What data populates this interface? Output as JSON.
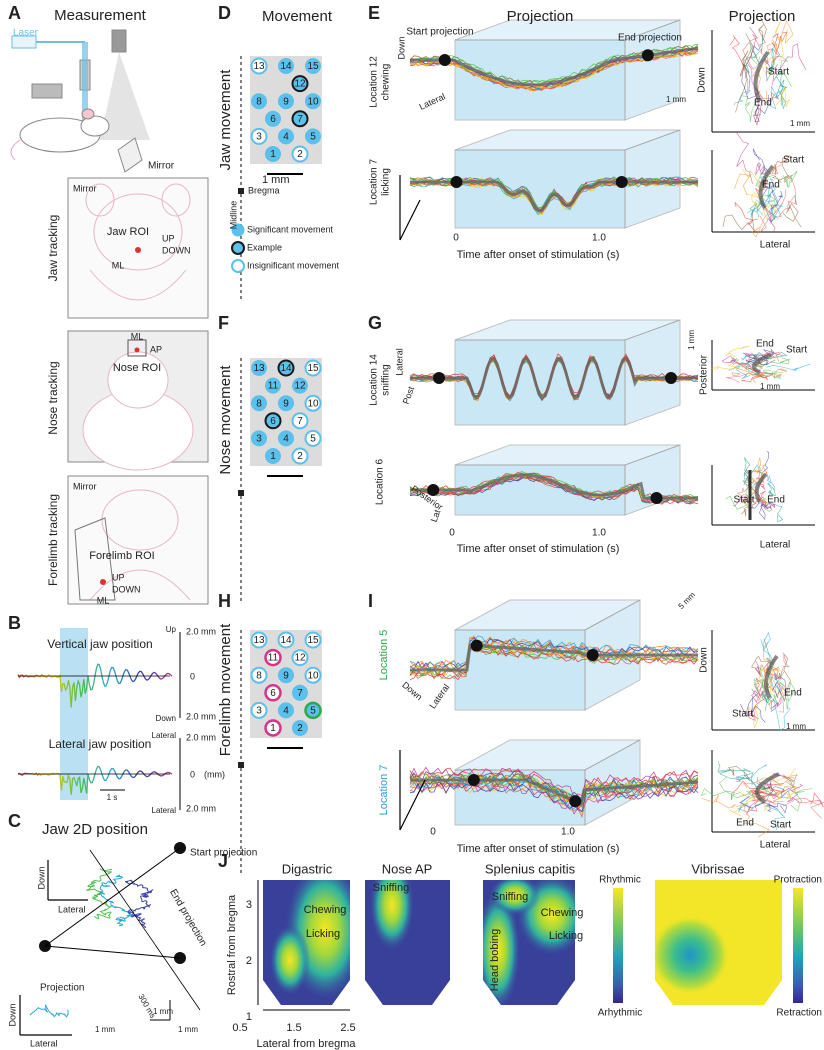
{
  "A": {
    "letter": "A",
    "title": "Measurement",
    "laser": "Laser",
    "mirror": "Mirror",
    "jaw": {
      "label": "Jaw tracking",
      "mirror": "Mirror",
      "roi": "Jaw ROI",
      "up": "UP",
      "down": "DOWN",
      "ml": "ML"
    },
    "nose": {
      "label": "Nose tracking",
      "ml": "ML",
      "ap": "AP",
      "roi": "Nose ROI"
    },
    "forelimb": {
      "label": "Forelimb tracking",
      "mirror": "Mirror",
      "roi": "Forelimb ROI",
      "up": "UP",
      "down": "DOWN",
      "ml": "ML"
    }
  },
  "B": {
    "letter": "B",
    "vertical": {
      "title": "Vertical jaw position",
      "top": "Up",
      "top_value": "2.0 mm",
      "zero": "0",
      "bottom": "Down",
      "bottom_value": "2.0 mm"
    },
    "lateral": {
      "title": "Lateral jaw position",
      "top": "Lateral",
      "top_value": "2.0 mm",
      "unit": "(mm)",
      "zero": "0",
      "time_scale": "1 s",
      "bottom": "Lateral",
      "bottom_value": "2.0 mm"
    }
  },
  "C": {
    "letter": "C",
    "title": "Jaw 2D position",
    "start": "Start projection",
    "end": "End projection",
    "down": "Down",
    "lateral": "Lateral",
    "projection": "Projection",
    "time": "300 ms",
    "scale_v": "1 mm",
    "scale_h": "1 mm",
    "inset_down": "Down",
    "inset_lateral": "Lateral",
    "inset_scale": "1 mm"
  },
  "D": {
    "letter": "D",
    "title": "Movement",
    "side": "Jaw movement",
    "scale": "1 mm",
    "bregma": "Bregma",
    "midline": "Midline",
    "sites": [
      {
        "label": "13",
        "kind": "insignificant"
      },
      {
        "label": "14",
        "kind": "significant"
      },
      {
        "label": "15",
        "kind": "significant"
      },
      {
        "label": "12",
        "kind": "example"
      },
      {
        "label": "8",
        "kind": "significant"
      },
      {
        "label": "9",
        "kind": "significant"
      },
      {
        "label": "10",
        "kind": "significant"
      },
      {
        "label": "6",
        "kind": "significant"
      },
      {
        "label": "7",
        "kind": "example"
      },
      {
        "label": "3",
        "kind": "insignificant"
      },
      {
        "label": "4",
        "kind": "significant"
      },
      {
        "label": "5",
        "kind": "significant"
      },
      {
        "label": "1",
        "kind": "significant"
      },
      {
        "label": "2",
        "kind": "insignificant"
      }
    ],
    "legend": [
      {
        "text": "Significant movement",
        "kind": "significant"
      },
      {
        "text": "Example",
        "kind": "example"
      },
      {
        "text": "Insignificant movement",
        "kind": "insignificant"
      }
    ]
  },
  "F": {
    "letter": "F",
    "side": "Nose movement",
    "sites": [
      {
        "label": "13",
        "kind": "significant"
      },
      {
        "label": "14",
        "kind": "example"
      },
      {
        "label": "15",
        "kind": "insignificant"
      },
      {
        "label": "11",
        "kind": "significant"
      },
      {
        "label": "12",
        "kind": "significant"
      },
      {
        "label": "8",
        "kind": "significant"
      },
      {
        "label": "9",
        "kind": "significant"
      },
      {
        "label": "10",
        "kind": "insignificant"
      },
      {
        "label": "6",
        "kind": "example"
      },
      {
        "label": "7",
        "kind": "insignificant"
      },
      {
        "label": "3",
        "kind": "significant"
      },
      {
        "label": "4",
        "kind": "significant"
      },
      {
        "label": "5",
        "kind": "insignificant"
      },
      {
        "label": "1",
        "kind": "significant"
      },
      {
        "label": "2",
        "kind": "insignificant"
      }
    ]
  },
  "H": {
    "letter": "H",
    "side": "Forelimb movement",
    "sites": [
      {
        "label": "13",
        "kind": "insignificant"
      },
      {
        "label": "14",
        "kind": "insignificant"
      },
      {
        "label": "15",
        "kind": "insignificant"
      },
      {
        "label": "11",
        "kind": "insignificant",
        "ring": "#d6338a"
      },
      {
        "label": "12",
        "kind": "insignificant"
      },
      {
        "label": "8",
        "kind": "insignificant"
      },
      {
        "label": "9",
        "kind": "significant"
      },
      {
        "label": "10",
        "kind": "insignificant"
      },
      {
        "label": "6",
        "kind": "insignificant",
        "ring": "#d6338a"
      },
      {
        "label": "7",
        "kind": "significant"
      },
      {
        "label": "3",
        "kind": "insignificant"
      },
      {
        "label": "4",
        "kind": "significant"
      },
      {
        "label": "5",
        "kind": "significant",
        "ring": "#2aa84a"
      },
      {
        "label": "1",
        "kind": "insignificant",
        "ring": "#d6338a"
      },
      {
        "label": "2",
        "kind": "significant"
      }
    ]
  },
  "E": {
    "letter": "E",
    "title": "Projection",
    "title_right": "Projection",
    "top": {
      "location": "Location 12",
      "behavior": "chewing",
      "start": "Start projection",
      "end": "End projection",
      "down": "Down",
      "lateral": "Lateral",
      "scale": "1 mm",
      "right": {
        "start": "Start",
        "end": "End",
        "down": "Down",
        "scale": "1 mm"
      }
    },
    "bottom": {
      "location": "Location 7",
      "behavior": "licking",
      "t0": "0",
      "t1": "1.0",
      "xlabel": "Time after onset of stimulation (s)",
      "right": {
        "start": "Start",
        "end": "End",
        "lateral": "Lateral"
      }
    }
  },
  "G": {
    "letter": "G",
    "top": {
      "location": "Location 14",
      "behavior": "sniffing",
      "lateral": "Lateral",
      "post": "Post",
      "scale": "1 mm",
      "right": {
        "posterior": "Posterior",
        "end": "End",
        "start": "Start",
        "scale": "1 mm"
      }
    },
    "bottom": {
      "location": "Location 6",
      "posterior": "Posterior",
      "lat": "Lat",
      "t0": "0",
      "t1": "1.0",
      "xlabel": "Time after onset of stimulation (s)",
      "right": {
        "start": "Start",
        "end": "End",
        "lateral": "Lateral"
      }
    }
  },
  "I": {
    "letter": "I",
    "top": {
      "location": "Location 5",
      "color": "#2aa84a",
      "down": "Down",
      "lateral": "Lateral",
      "scale": "5 mm",
      "right": {
        "down": "Down",
        "end": "End",
        "start": "Start",
        "scale": "1 mm"
      }
    },
    "bottom": {
      "location": "Location 7",
      "color": "#2a9fd6",
      "t0": "0",
      "t1": "1.0",
      "xlabel": "Time after onset of stimulation (s)",
      "right": {
        "end": "End",
        "start": "Start",
        "lateral": "Lateral"
      }
    }
  },
  "J": {
    "letter": "J",
    "maps": [
      {
        "title": "Digastric",
        "notes": [
          "Chewing",
          "Licking"
        ]
      },
      {
        "title": "Nose AP",
        "notes": [
          "Sniffing"
        ]
      },
      {
        "title": "Splenius capitis",
        "notes": [
          "Sniffing",
          "Chewing",
          "Licking",
          "Head bobing"
        ]
      },
      {
        "title": "Vibrissae",
        "notes": []
      }
    ],
    "colorbar1": {
      "top": "Rhythmic",
      "bottom": "Arhythmic"
    },
    "colorbar2": {
      "top": "Protraction",
      "bottom": "Retraction"
    },
    "yticks": [
      "3",
      "2",
      "1"
    ],
    "xticks": [
      "0.5",
      "1.5",
      "2.5"
    ],
    "xlabel": "Lateral from bregma",
    "ylabel": "Rostral from bregma"
  }
}
